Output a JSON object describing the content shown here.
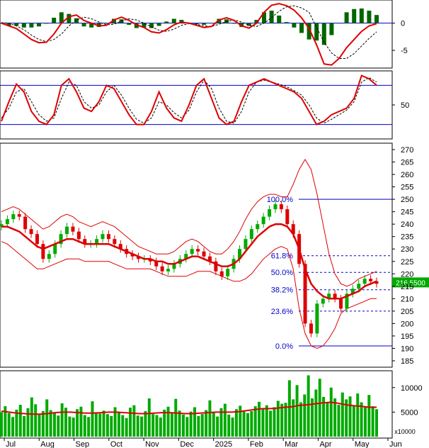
{
  "chart_data": [
    {
      "panel": "macd",
      "type": "line",
      "y_ticks": [
        "0",
        "-5"
      ],
      "zero_level": 0,
      "ylim": [
        -8,
        4
      ],
      "macd_line": [
        0,
        -0.5,
        -1,
        -2,
        -3,
        -3.6,
        -3.5,
        -2,
        0,
        1.2,
        1.5,
        0.5,
        0,
        -0.5,
        -0.4,
        0.6,
        1.1,
        0.5,
        -0.3,
        -0.8,
        -1.6,
        -1.8,
        -1.2,
        -0.3,
        0.2,
        0,
        -0.4,
        -0.8,
        -0.6,
        0.6,
        1,
        0.5,
        -0.5,
        -0.9,
        0,
        2,
        3.3,
        3.6,
        3.2,
        2.4,
        1,
        -1,
        -4,
        -7.5,
        -7.7,
        -6.5,
        -4.5,
        -3,
        -1.5,
        -0.5,
        -0.1
      ],
      "signal_line": [
        0.1,
        0,
        -0.5,
        -1.2,
        -2.2,
        -3,
        -3.4,
        -3,
        -2,
        -0.5,
        0.6,
        1.1,
        0.8,
        0.2,
        -0.3,
        -0.2,
        0.4,
        0.8,
        0.6,
        0,
        -0.7,
        -1.3,
        -1.5,
        -1.1,
        -0.4,
        -0.1,
        -0.2,
        -0.5,
        -0.6,
        -0.2,
        0.3,
        0.6,
        0.2,
        -0.4,
        -0.6,
        0,
        1,
        2.2,
        3,
        3.2,
        2.8,
        2,
        -0.8,
        -3.5,
        -5.5,
        -6.5,
        -6.5,
        -5.6,
        -4.2,
        -2.8,
        -1.6
      ],
      "histogram": [
        -0.1,
        -0.5,
        -0.5,
        -0.8,
        -0.8,
        -0.6,
        -0.1,
        1,
        2,
        1.7,
        0.9,
        -0.6,
        -0.8,
        -0.7,
        -0.1,
        0.8,
        0.7,
        -0.3,
        -0.9,
        -0.8,
        -0.9,
        -0.5,
        0.3,
        0.8,
        0.6,
        0.1,
        -0.2,
        -0.3,
        0,
        0.8,
        0.7,
        -0.1,
        -0.7,
        -0.5,
        0.6,
        2,
        2.3,
        1.4,
        0.2,
        -0.8,
        -1.8,
        -3,
        -3.2,
        -4,
        -2.2,
        0,
        2,
        2.6,
        2.7,
        2.3,
        1.5
      ]
    },
    {
      "panel": "stochastic",
      "type": "line",
      "y_ticks": [
        "50"
      ],
      "levels": [
        80,
        20
      ],
      "ylim": [
        0,
        100
      ],
      "k_line": [
        25,
        55,
        82,
        70,
        40,
        25,
        20,
        35,
        80,
        90,
        70,
        45,
        40,
        55,
        80,
        75,
        55,
        35,
        20,
        20,
        40,
        70,
        45,
        30,
        25,
        50,
        80,
        90,
        60,
        30,
        20,
        25,
        55,
        80,
        85,
        90,
        85,
        80,
        75,
        70,
        60,
        40,
        20,
        25,
        35,
        40,
        45,
        60,
        95,
        90,
        80
      ],
      "d_line": [
        30,
        45,
        70,
        75,
        55,
        35,
        25,
        30,
        60,
        85,
        80,
        55,
        45,
        50,
        70,
        80,
        65,
        45,
        28,
        22,
        30,
        55,
        50,
        38,
        30,
        42,
        70,
        88,
        75,
        45,
        25,
        22,
        40,
        70,
        85,
        88,
        85,
        82,
        78,
        72,
        65,
        50,
        30,
        22,
        28,
        35,
        42,
        55,
        85,
        92,
        85
      ]
    },
    {
      "panel": "price",
      "type": "candlestick",
      "y_ticks": [
        "270",
        "265",
        "260",
        "255",
        "250",
        "245",
        "240",
        "235",
        "230",
        "225",
        "220",
        "215",
        "210",
        "205",
        "200",
        "195",
        "190",
        "185"
      ],
      "ylim": [
        183,
        272
      ],
      "last_price_label": "216.5500",
      "last_price": 216.55,
      "x_month_labels": [
        "Jul",
        "Aug",
        "Sep",
        "Oct",
        "Nov",
        "Dec",
        "2025",
        "Feb",
        "Mar",
        "Apr",
        "May",
        "Jun"
      ],
      "fib_levels": [
        {
          "label": "100.0%",
          "value": 250
        },
        {
          "label": "61.8%",
          "value": 227.3
        },
        {
          "label": "50.0%",
          "value": 220.6
        },
        {
          "label": "38.2%",
          "value": 213.6
        },
        {
          "label": "23.6%",
          "value": 205
        },
        {
          "label": "0.0%",
          "value": 191
        }
      ],
      "close": [
        240,
        242,
        244,
        243,
        238,
        236,
        232,
        226,
        228,
        232,
        236,
        239,
        237,
        234,
        232,
        232,
        234,
        236,
        234,
        232,
        230,
        228,
        227,
        226,
        226,
        225,
        223,
        221,
        222,
        224,
        226,
        228,
        230,
        229,
        227,
        225,
        221,
        219,
        222,
        226,
        230,
        234,
        238,
        240,
        243,
        246,
        248,
        246,
        240,
        236,
        224,
        200,
        196,
        208,
        210,
        212,
        210,
        206,
        212,
        214,
        216,
        218,
        217,
        216
      ],
      "middle_band": [
        239,
        239,
        238,
        237,
        235,
        233,
        231,
        230,
        231,
        232,
        233,
        234,
        234,
        233,
        232,
        232,
        232,
        232,
        232,
        231,
        230,
        229,
        228,
        227,
        226,
        226,
        225,
        225,
        224,
        224,
        225,
        226,
        227,
        227,
        226,
        225,
        224,
        223,
        223,
        224,
        226,
        229,
        232,
        235,
        237,
        239,
        240,
        240,
        239,
        236,
        230,
        222,
        216,
        213,
        211,
        210,
        210,
        210,
        211,
        212,
        213,
        215,
        216,
        217
      ],
      "upper_band": [
        245,
        246,
        247,
        246,
        244,
        242,
        240,
        238,
        239,
        241,
        243,
        244,
        243,
        241,
        240,
        239,
        240,
        241,
        240,
        239,
        237,
        235,
        233,
        231,
        230,
        229,
        228,
        228,
        228,
        229,
        231,
        233,
        234,
        233,
        231,
        229,
        228,
        228,
        230,
        233,
        237,
        242,
        246,
        249,
        251,
        252,
        252,
        251,
        251,
        256,
        262,
        266,
        262,
        252,
        240,
        228,
        220,
        216,
        215,
        216,
        218,
        219,
        220,
        221
      ],
      "lower_band": [
        233,
        232,
        230,
        228,
        226,
        224,
        222,
        222,
        223,
        224,
        225,
        226,
        226,
        226,
        225,
        225,
        225,
        225,
        225,
        224,
        223,
        222,
        222,
        222,
        222,
        222,
        221,
        220,
        219,
        219,
        219,
        219,
        220,
        221,
        221,
        221,
        220,
        219,
        218,
        217,
        217,
        218,
        220,
        223,
        226,
        228,
        230,
        231,
        230,
        222,
        206,
        196,
        191,
        190,
        191,
        194,
        198,
        204,
        206,
        207,
        208,
        209,
        210,
        210
      ]
    },
    {
      "panel": "volume",
      "type": "bar",
      "y_ticks": [
        "10000",
        "5000"
      ],
      "unit_label": "x10000",
      "ylim": [
        0,
        13000
      ],
      "values": [
        5000,
        6200,
        4800,
        4000,
        5500,
        6500,
        4200,
        5800,
        8000,
        6600,
        4500,
        5200,
        7600,
        5400,
        4800,
        4300,
        6800,
        5900,
        4100,
        3900,
        5600,
        6100,
        4400,
        4000,
        7200,
        5000,
        4700,
        5300,
        4600,
        4200,
        6000,
        5100,
        4400,
        3800,
        5900,
        6400,
        4300,
        4100,
        5200,
        7800,
        4600,
        4400,
        3900,
        5500,
        6100,
        4800,
        7700,
        5300,
        4500,
        4000,
        5100,
        6000,
        4200,
        4600,
        5400,
        7400,
        4900,
        4100,
        5800,
        6700,
        4500,
        3900,
        5600,
        6300,
        5100,
        4800,
        5200,
        6200,
        7100,
        5600,
        6400,
        5300,
        6000,
        7300,
        6700,
        6900,
        11500,
        7600,
        10500,
        7000,
        8600,
        12500,
        7800,
        9600,
        11800,
        8100,
        7000,
        10000,
        7800,
        6500,
        9000,
        7600,
        8200,
        6400,
        8800,
        7000,
        6000,
        8500,
        6200,
        5600
      ],
      "ma_line": [
        5200,
        5000,
        4800,
        4700,
        4600,
        4600,
        4700,
        4900,
        5000,
        5000,
        4900,
        4800,
        4800,
        4900,
        5000,
        5000,
        4900,
        4800,
        4700,
        4700,
        4800,
        4900,
        4900,
        4800,
        4700,
        4700,
        4800,
        4900,
        5000,
        5000,
        5000,
        5100,
        5300,
        5500,
        5700,
        5700,
        5800,
        6000,
        6100,
        6400,
        6500,
        6700,
        6900,
        7000,
        6800,
        6500,
        6300,
        6200,
        6000,
        6000
      ]
    }
  ]
}
